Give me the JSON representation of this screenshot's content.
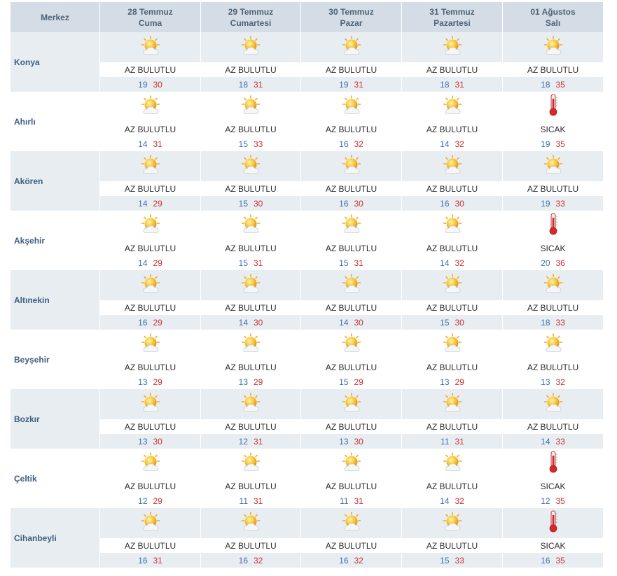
{
  "header": {
    "merkez": "Merkez",
    "days": [
      {
        "date": "28 Temmuz",
        "day": "Cuma"
      },
      {
        "date": "29 Temmuz",
        "day": "Cumartesi"
      },
      {
        "date": "30 Temmuz",
        "day": "Pazar"
      },
      {
        "date": "31 Temmuz",
        "day": "Pazartesi"
      },
      {
        "date": "01 Ağustos",
        "day": "Salı"
      }
    ]
  },
  "colors": {
    "min": "#3c6fb3",
    "max": "#cc3333",
    "header_bg": "#d4dde6",
    "row_alt": "#e8edf2"
  },
  "rows": [
    {
      "city": "Konya",
      "days": [
        {
          "icon": "partly-cloudy-icon",
          "desc": "AZ BULUTLU",
          "min": "19",
          "max": "30"
        },
        {
          "icon": "partly-cloudy-icon",
          "desc": "AZ BULUTLU",
          "min": "18",
          "max": "31"
        },
        {
          "icon": "partly-cloudy-icon",
          "desc": "AZ BULUTLU",
          "min": "19",
          "max": "31"
        },
        {
          "icon": "partly-cloudy-icon",
          "desc": "AZ BULUTLU",
          "min": "18",
          "max": "31"
        },
        {
          "icon": "partly-cloudy-icon",
          "desc": "AZ BULUTLU",
          "min": "18",
          "max": "35"
        }
      ]
    },
    {
      "city": "Ahırlı",
      "days": [
        {
          "icon": "partly-cloudy-icon",
          "desc": "AZ BULUTLU",
          "min": "14",
          "max": "31"
        },
        {
          "icon": "partly-cloudy-icon",
          "desc": "AZ BULUTLU",
          "min": "15",
          "max": "33"
        },
        {
          "icon": "partly-cloudy-icon",
          "desc": "AZ BULUTLU",
          "min": "16",
          "max": "32"
        },
        {
          "icon": "partly-cloudy-icon",
          "desc": "AZ BULUTLU",
          "min": "14",
          "max": "32"
        },
        {
          "icon": "thermometer-icon",
          "desc": "SICAK",
          "min": "19",
          "max": "35"
        }
      ]
    },
    {
      "city": "Akören",
      "days": [
        {
          "icon": "partly-cloudy-icon",
          "desc": "AZ BULUTLU",
          "min": "14",
          "max": "29"
        },
        {
          "icon": "partly-cloudy-icon",
          "desc": "AZ BULUTLU",
          "min": "15",
          "max": "30"
        },
        {
          "icon": "partly-cloudy-icon",
          "desc": "AZ BULUTLU",
          "min": "16",
          "max": "30"
        },
        {
          "icon": "partly-cloudy-icon",
          "desc": "AZ BULUTLU",
          "min": "16",
          "max": "30"
        },
        {
          "icon": "partly-cloudy-icon",
          "desc": "AZ BULUTLU",
          "min": "19",
          "max": "33"
        }
      ]
    },
    {
      "city": "Akşehir",
      "days": [
        {
          "icon": "partly-cloudy-icon",
          "desc": "AZ BULUTLU",
          "min": "14",
          "max": "29"
        },
        {
          "icon": "partly-cloudy-icon",
          "desc": "AZ BULUTLU",
          "min": "15",
          "max": "31"
        },
        {
          "icon": "partly-cloudy-icon",
          "desc": "AZ BULUTLU",
          "min": "15",
          "max": "31"
        },
        {
          "icon": "partly-cloudy-icon",
          "desc": "AZ BULUTLU",
          "min": "14",
          "max": "32"
        },
        {
          "icon": "thermometer-icon",
          "desc": "SICAK",
          "min": "20",
          "max": "36"
        }
      ]
    },
    {
      "city": "Altınekin",
      "days": [
        {
          "icon": "partly-cloudy-icon",
          "desc": "AZ BULUTLU",
          "min": "16",
          "max": "29"
        },
        {
          "icon": "partly-cloudy-icon",
          "desc": "AZ BULUTLU",
          "min": "14",
          "max": "30"
        },
        {
          "icon": "partly-cloudy-icon",
          "desc": "AZ BULUTLU",
          "min": "14",
          "max": "30"
        },
        {
          "icon": "partly-cloudy-icon",
          "desc": "AZ BULUTLU",
          "min": "15",
          "max": "30"
        },
        {
          "icon": "partly-cloudy-icon",
          "desc": "AZ BULUTLU",
          "min": "18",
          "max": "33"
        }
      ]
    },
    {
      "city": "Beyşehir",
      "days": [
        {
          "icon": "partly-cloudy-icon",
          "desc": "AZ BULUTLU",
          "min": "13",
          "max": "29"
        },
        {
          "icon": "partly-cloudy-icon",
          "desc": "AZ BULUTLU",
          "min": "13",
          "max": "29"
        },
        {
          "icon": "partly-cloudy-icon",
          "desc": "AZ BULUTLU",
          "min": "15",
          "max": "29"
        },
        {
          "icon": "partly-cloudy-icon",
          "desc": "AZ BULUTLU",
          "min": "13",
          "max": "29"
        },
        {
          "icon": "partly-cloudy-icon",
          "desc": "AZ BULUTLU",
          "min": "13",
          "max": "32"
        }
      ]
    },
    {
      "city": "Bozkır",
      "days": [
        {
          "icon": "partly-cloudy-icon",
          "desc": "AZ BULUTLU",
          "min": "13",
          "max": "30"
        },
        {
          "icon": "partly-cloudy-icon",
          "desc": "AZ BULUTLU",
          "min": "12",
          "max": "31"
        },
        {
          "icon": "partly-cloudy-icon",
          "desc": "AZ BULUTLU",
          "min": "13",
          "max": "30"
        },
        {
          "icon": "partly-cloudy-icon",
          "desc": "AZ BULUTLU",
          "min": "11",
          "max": "31"
        },
        {
          "icon": "partly-cloudy-icon",
          "desc": "AZ BULUTLU",
          "min": "14",
          "max": "33"
        }
      ]
    },
    {
      "city": "Çeltik",
      "days": [
        {
          "icon": "partly-cloudy-icon",
          "desc": "AZ BULUTLU",
          "min": "12",
          "max": "29"
        },
        {
          "icon": "partly-cloudy-icon",
          "desc": "AZ BULUTLU",
          "min": "11",
          "max": "31"
        },
        {
          "icon": "partly-cloudy-icon",
          "desc": "AZ BULUTLU",
          "min": "11",
          "max": "31"
        },
        {
          "icon": "partly-cloudy-icon",
          "desc": "AZ BULUTLU",
          "min": "14",
          "max": "32"
        },
        {
          "icon": "thermometer-icon",
          "desc": "SICAK",
          "min": "12",
          "max": "35"
        }
      ]
    },
    {
      "city": "Cihanbeyli",
      "days": [
        {
          "icon": "partly-cloudy-icon",
          "desc": "AZ BULUTLU",
          "min": "16",
          "max": "31"
        },
        {
          "icon": "partly-cloudy-icon",
          "desc": "AZ BULUTLU",
          "min": "16",
          "max": "32"
        },
        {
          "icon": "partly-cloudy-icon",
          "desc": "AZ BULUTLU",
          "min": "16",
          "max": "32"
        },
        {
          "icon": "partly-cloudy-icon",
          "desc": "AZ BULUTLU",
          "min": "15",
          "max": "33"
        },
        {
          "icon": "thermometer-icon",
          "desc": "SICAK",
          "min": "16",
          "max": "35"
        }
      ]
    }
  ]
}
